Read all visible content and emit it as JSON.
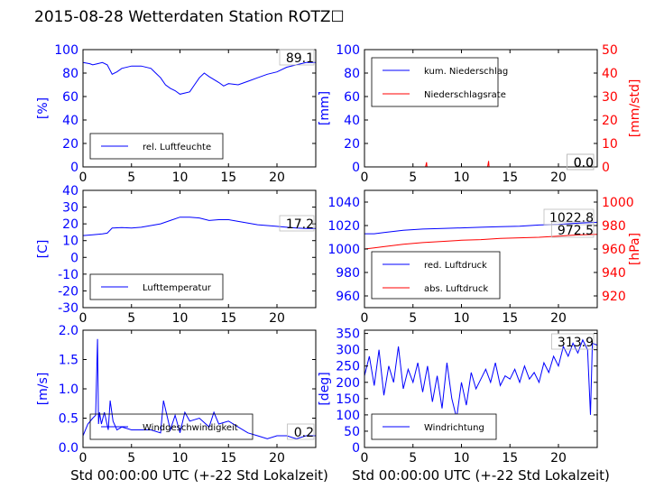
{
  "figure": {
    "title": "2015-08-28 Wetterdaten Station ROTZ☐",
    "xlabel": "Std 00:00:00 UTC (+-22 Std Lokalzeit)"
  },
  "chart_data": [
    {
      "type": "line",
      "ylabel": "[%]",
      "ylim": [
        0,
        100
      ],
      "yticks": [
        0,
        20,
        40,
        60,
        80,
        100
      ],
      "xlim": [
        0,
        24
      ],
      "xticks": [
        0,
        5,
        10,
        15,
        20
      ],
      "legend_position": "lower-left",
      "current_value": "89.1",
      "series": [
        {
          "name": "rel. Luftfeuchte",
          "color": "#0000ff",
          "x": [
            0,
            0.7,
            1,
            1.5,
            2,
            2.5,
            3,
            3.5,
            4,
            5,
            6,
            7,
            7.5,
            8,
            8.5,
            9,
            9.5,
            10,
            10.5,
            11,
            11.5,
            12,
            12.5,
            13,
            14,
            14.5,
            15,
            16,
            17,
            18,
            19,
            20,
            21,
            22,
            23,
            24
          ],
          "y": [
            89,
            88,
            87,
            88,
            89,
            87,
            79,
            81,
            84,
            86,
            86,
            84,
            80,
            76,
            70,
            67,
            65,
            62,
            63,
            64,
            70,
            76,
            80,
            77,
            72,
            69,
            71,
            70,
            73,
            76,
            79,
            81,
            85,
            87,
            89,
            89.1
          ]
        }
      ]
    },
    {
      "type": "line",
      "ylabel": "[mm]",
      "ylabel_right": "[mm/std]",
      "ylim": [
        0,
        100
      ],
      "yticks": [
        0,
        20,
        40,
        60,
        80,
        100
      ],
      "ylim_right": [
        0,
        50
      ],
      "yticks_right": [
        0,
        10,
        20,
        30,
        40,
        50
      ],
      "xlim": [
        0,
        24
      ],
      "xticks": [
        0,
        5,
        10,
        15,
        20
      ],
      "legend_position": "upper-left",
      "current_value": "0.0",
      "current_value_2": "0.0",
      "series": [
        {
          "name": "kum. Niederschlag",
          "color": "#0000ff",
          "axis": "left",
          "x": [
            0,
            24
          ],
          "y": [
            0,
            0
          ]
        },
        {
          "name": "Niederschlagsrate",
          "color": "#ff0000",
          "axis": "right",
          "x": [
            0,
            6.3,
            6.4,
            6.45,
            12.7,
            12.8,
            12.85,
            24
          ],
          "y": [
            0,
            0,
            2,
            0,
            0,
            2.5,
            0,
            0
          ]
        }
      ]
    },
    {
      "type": "line",
      "ylabel": "[C]",
      "ylim": [
        -30,
        40
      ],
      "yticks": [
        -30,
        -20,
        -10,
        0,
        10,
        20,
        30,
        40
      ],
      "xlim": [
        0,
        24
      ],
      "xticks": [
        0,
        5,
        10,
        15,
        20
      ],
      "legend_position": "lower-left",
      "current_value": "17.2",
      "series": [
        {
          "name": "Lufttemperatur",
          "color": "#0000ff",
          "x": [
            0,
            1,
            2,
            2.5,
            3,
            4,
            5,
            6,
            7,
            8,
            9,
            10,
            11,
            12,
            13,
            14,
            15,
            16,
            17,
            18,
            19,
            20,
            21,
            22,
            23,
            24
          ],
          "y": [
            13,
            13.5,
            14,
            14.5,
            17.5,
            17.8,
            17.5,
            18,
            19,
            20,
            22,
            24,
            24,
            23.5,
            22,
            22.5,
            22.5,
            21.5,
            20.5,
            19.5,
            19,
            18.5,
            18,
            17.5,
            17.3,
            17.2
          ]
        }
      ]
    },
    {
      "type": "line",
      "ylabel_right": "[hPa]",
      "ylim": [
        950,
        1050
      ],
      "yticks": [
        960,
        980,
        1000,
        1020,
        1040
      ],
      "ylim_right": [
        910,
        1010
      ],
      "yticks_right": [
        920,
        940,
        960,
        980,
        1000
      ],
      "xlim": [
        0,
        24
      ],
      "xticks": [
        0,
        5,
        10,
        15,
        20
      ],
      "legend_position": "lower-left",
      "current_value": "1022.8",
      "current_value_2": "972.5",
      "series": [
        {
          "name": "red. Luftdruck",
          "color": "#0000ff",
          "axis": "left",
          "x": [
            0,
            1,
            2,
            4,
            6,
            8,
            10,
            12,
            14,
            16,
            18,
            20,
            22,
            24
          ],
          "y": [
            1013,
            1013,
            1014,
            1016,
            1017,
            1017.5,
            1018,
            1018.5,
            1019,
            1019.5,
            1020.5,
            1021,
            1022,
            1022.8
          ]
        },
        {
          "name": "abs. Luftdruck",
          "color": "#ff0000",
          "axis": "right",
          "x": [
            0,
            1,
            2,
            4,
            6,
            8,
            10,
            12,
            14,
            16,
            18,
            20,
            22,
            24
          ],
          "y": [
            960,
            961,
            962,
            964,
            965.5,
            966.5,
            967.5,
            968,
            969,
            969.5,
            970,
            971,
            972,
            972.5
          ]
        }
      ]
    },
    {
      "type": "line",
      "ylabel": "[m/s]",
      "ylim": [
        0,
        2.0
      ],
      "yticks": [
        0.0,
        0.5,
        1.0,
        1.5,
        2.0
      ],
      "xlim": [
        0,
        24
      ],
      "xticks": [
        0,
        5,
        10,
        15,
        20
      ],
      "legend_position": "lower-left",
      "current_value": "0.2",
      "series": [
        {
          "name": "Windgeschwindigkeit",
          "color": "#0000ff",
          "x": [
            0,
            0.5,
            1,
            1.3,
            1.5,
            1.6,
            1.7,
            1.9,
            2.2,
            2.6,
            2.8,
            3.1,
            3.5,
            4,
            5,
            6,
            7,
            8,
            8.3,
            9,
            9.5,
            10,
            10.5,
            11,
            12,
            13,
            13.5,
            14,
            15,
            16,
            17,
            18,
            19,
            20,
            21,
            22,
            23,
            24
          ],
          "y": [
            0.2,
            0.4,
            0.5,
            0.55,
            1.85,
            0.4,
            0.6,
            0.4,
            0.6,
            0.3,
            0.8,
            0.45,
            0.3,
            0.35,
            0.3,
            0.3,
            0.3,
            0.25,
            0.8,
            0.3,
            0.55,
            0.25,
            0.6,
            0.45,
            0.5,
            0.35,
            0.6,
            0.4,
            0.45,
            0.35,
            0.25,
            0.2,
            0.15,
            0.2,
            0.2,
            0.15,
            0.2,
            0.2
          ]
        }
      ]
    },
    {
      "type": "line",
      "ylabel": "[deg]",
      "ylim": [
        0,
        360
      ],
      "yticks": [
        0,
        50,
        100,
        150,
        200,
        250,
        300,
        350
      ],
      "xlim": [
        0,
        24
      ],
      "xticks": [
        0,
        5,
        10,
        15,
        20
      ],
      "legend_position": "lower-left",
      "current_value": "313.9",
      "series": [
        {
          "name": "Windrichtung",
          "color": "#0000ff",
          "x": [
            0,
            0.5,
            1,
            1.5,
            2,
            2.5,
            3,
            3.5,
            4,
            4.5,
            5,
            5.5,
            6,
            6.5,
            7,
            7.5,
            8,
            8.5,
            9,
            9.5,
            10,
            10.5,
            11,
            11.5,
            12,
            12.5,
            13,
            13.5,
            14,
            14.5,
            15,
            15.5,
            16,
            16.5,
            17,
            17.5,
            18,
            18.5,
            19,
            19.5,
            20,
            20.5,
            21,
            21.5,
            22,
            22.5,
            23,
            23.3,
            23.5,
            24
          ],
          "y": [
            220,
            280,
            190,
            300,
            160,
            250,
            200,
            310,
            180,
            240,
            200,
            260,
            170,
            250,
            140,
            220,
            120,
            260,
            150,
            90,
            200,
            130,
            230,
            180,
            210,
            240,
            200,
            260,
            190,
            220,
            210,
            240,
            200,
            250,
            210,
            230,
            200,
            260,
            230,
            280,
            250,
            310,
            280,
            320,
            290,
            330,
            300,
            100,
            320,
            313.9
          ]
        }
      ]
    }
  ]
}
